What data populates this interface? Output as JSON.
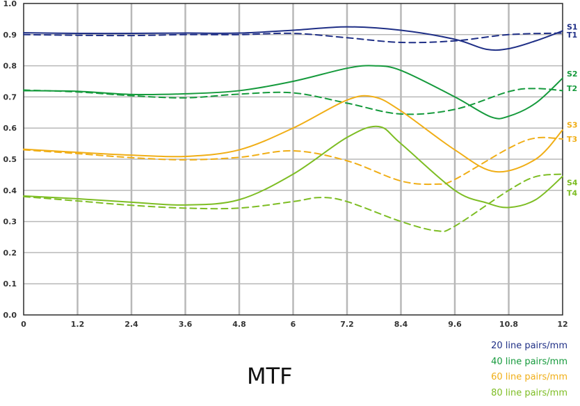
{
  "chart_data": {
    "type": "line",
    "title": "MTF",
    "xlim": [
      0,
      12
    ],
    "ylim": [
      0,
      1.0
    ],
    "xticks": [
      "0",
      "1.2",
      "2.4",
      "3.6",
      "4.8",
      "6",
      "7.2",
      "8.4",
      "9.6",
      "10.8",
      "12"
    ],
    "yticks": [
      "0.0",
      "0.1",
      "0.2",
      "0.3",
      "0.4",
      "0.5",
      "0.6",
      "0.7",
      "0.8",
      "0.9",
      "1.0"
    ],
    "grid": true,
    "legend_position": "bottom-right",
    "legend": [
      {
        "label": "20 line pairs/mm",
        "color": "#1f2f86"
      },
      {
        "label": "40 line pairs/mm",
        "color": "#159a3c"
      },
      {
        "label": "60 line pairs/mm",
        "color": "#f0ae16"
      },
      {
        "label": "80 line pairs/mm",
        "color": "#7dbd23"
      }
    ],
    "series": [
      {
        "name": "S1",
        "color": "#1f2f86",
        "dash": "solid",
        "x": [
          0,
          1.2,
          2.4,
          3.6,
          4.8,
          6,
          7.2,
          8.4,
          9.6,
          10.3,
          10.8,
          11.4,
          12
        ],
        "y": [
          0.906,
          0.904,
          0.904,
          0.905,
          0.905,
          0.914,
          0.925,
          0.914,
          0.885,
          0.853,
          0.855,
          0.88,
          0.912
        ]
      },
      {
        "name": "T1",
        "color": "#1f2f86",
        "dash": "dashed",
        "x": [
          0,
          1.2,
          2.4,
          3.6,
          4.8,
          6,
          7.2,
          8.4,
          9.6,
          10.8,
          12
        ],
        "y": [
          0.9,
          0.898,
          0.897,
          0.9,
          0.9,
          0.904,
          0.89,
          0.875,
          0.88,
          0.9,
          0.905
        ]
      },
      {
        "name": "S2",
        "color": "#159a3c",
        "dash": "solid",
        "x": [
          0,
          1.2,
          2.4,
          3.6,
          4.8,
          6,
          7.2,
          7.8,
          8.4,
          9.6,
          10.4,
          10.8,
          11.4,
          12
        ],
        "y": [
          0.72,
          0.718,
          0.708,
          0.71,
          0.72,
          0.75,
          0.792,
          0.8,
          0.785,
          0.7,
          0.636,
          0.638,
          0.68,
          0.76
        ]
      },
      {
        "name": "T2",
        "color": "#159a3c",
        "dash": "dashed",
        "x": [
          0,
          1.2,
          2.4,
          3.6,
          4.8,
          6,
          7.2,
          8.4,
          9.6,
          10.8,
          11.4,
          12
        ],
        "y": [
          0.722,
          0.716,
          0.704,
          0.697,
          0.709,
          0.713,
          0.68,
          0.645,
          0.66,
          0.717,
          0.727,
          0.72
        ]
      },
      {
        "name": "S3",
        "color": "#f0ae16",
        "dash": "solid",
        "x": [
          0,
          1.2,
          2.4,
          3.6,
          4.8,
          6,
          7.2,
          7.8,
          8.4,
          9.6,
          10.5,
          11.4,
          12
        ],
        "y": [
          0.532,
          0.522,
          0.513,
          0.509,
          0.53,
          0.6,
          0.69,
          0.7,
          0.655,
          0.53,
          0.46,
          0.5,
          0.594
        ]
      },
      {
        "name": "T3",
        "color": "#f0ae16",
        "dash": "dashed",
        "x": [
          0,
          1.2,
          2.4,
          3.6,
          4.8,
          6,
          7.2,
          8.4,
          9.2,
          9.6,
          10.8,
          11.4,
          12
        ],
        "y": [
          0.53,
          0.518,
          0.505,
          0.498,
          0.506,
          0.527,
          0.495,
          0.43,
          0.42,
          0.435,
          0.535,
          0.568,
          0.565
        ]
      },
      {
        "name": "S4",
        "color": "#7dbd23",
        "dash": "solid",
        "x": [
          0,
          1.2,
          2.4,
          3.6,
          4.8,
          6,
          7.2,
          7.9,
          8.4,
          9.6,
          10.3,
          10.8,
          11.4,
          12
        ],
        "y": [
          0.382,
          0.373,
          0.362,
          0.353,
          0.37,
          0.452,
          0.57,
          0.605,
          0.55,
          0.4,
          0.36,
          0.345,
          0.37,
          0.445
        ]
      },
      {
        "name": "T4",
        "color": "#7dbd23",
        "dash": "dashed",
        "x": [
          0,
          1.2,
          2.4,
          3.6,
          4.8,
          6,
          6.6,
          7.2,
          8.4,
          9.2,
          9.6,
          10.8,
          11.4,
          12
        ],
        "y": [
          0.38,
          0.366,
          0.352,
          0.343,
          0.343,
          0.364,
          0.377,
          0.364,
          0.3,
          0.27,
          0.285,
          0.4,
          0.444,
          0.452
        ]
      }
    ],
    "end_labels": [
      {
        "text": "S1",
        "y": 0.925,
        "color": "#1f2f86"
      },
      {
        "text": "T1",
        "y": 0.9,
        "color": "#1f2f86"
      },
      {
        "text": "S2",
        "y": 0.775,
        "color": "#159a3c"
      },
      {
        "text": "T2",
        "y": 0.728,
        "color": "#159a3c"
      },
      {
        "text": "S3",
        "y": 0.61,
        "color": "#f0ae16"
      },
      {
        "text": "T3",
        "y": 0.565,
        "color": "#f0ae16"
      },
      {
        "text": "S4",
        "y": 0.425,
        "color": "#7dbd23"
      },
      {
        "text": "T4",
        "y": 0.392,
        "color": "#7dbd23"
      }
    ]
  }
}
